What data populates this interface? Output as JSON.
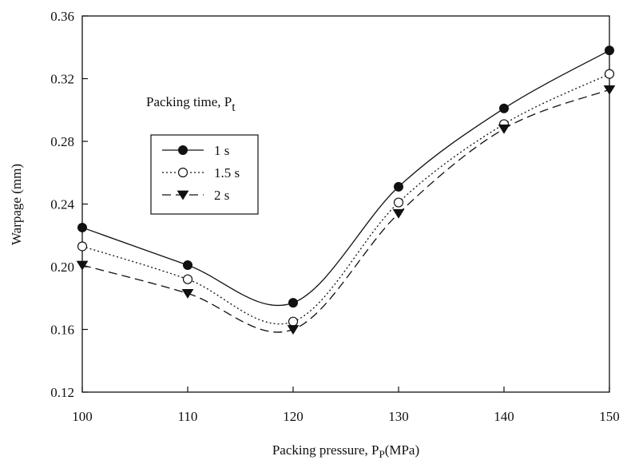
{
  "chart_data": {
    "type": "line",
    "x": [
      100,
      110,
      120,
      130,
      140,
      150
    ],
    "series": [
      {
        "name": "1 s",
        "values": [
          0.225,
          0.201,
          0.177,
          0.251,
          0.301,
          0.338
        ],
        "marker": "filled-circle",
        "line": "solid"
      },
      {
        "name": "1.5 s",
        "values": [
          0.213,
          0.192,
          0.165,
          0.241,
          0.291,
          0.323
        ],
        "marker": "open-circle",
        "line": "dotted"
      },
      {
        "name": "2 s",
        "values": [
          0.201,
          0.183,
          0.16,
          0.234,
          0.288,
          0.313
        ],
        "marker": "filled-triangle-down",
        "line": "dashed"
      }
    ],
    "xlabel": {
      "main": "Packing pressure, P",
      "sub": "P",
      "unit": "(MPa)"
    },
    "ylabel": "Warpage (mm)",
    "xlim": [
      100,
      150
    ],
    "ylim": [
      0.12,
      0.36
    ],
    "xticks": [
      "100",
      "110",
      "120",
      "130",
      "140",
      "150"
    ],
    "yticks": [
      "0.12",
      "0.16",
      "0.20",
      "0.24",
      "0.28",
      "0.32",
      "0.36"
    ],
    "legend_title": {
      "main": "Packing time, P",
      "sub": "t"
    },
    "legend_placement": "upper-left",
    "grid": false
  }
}
